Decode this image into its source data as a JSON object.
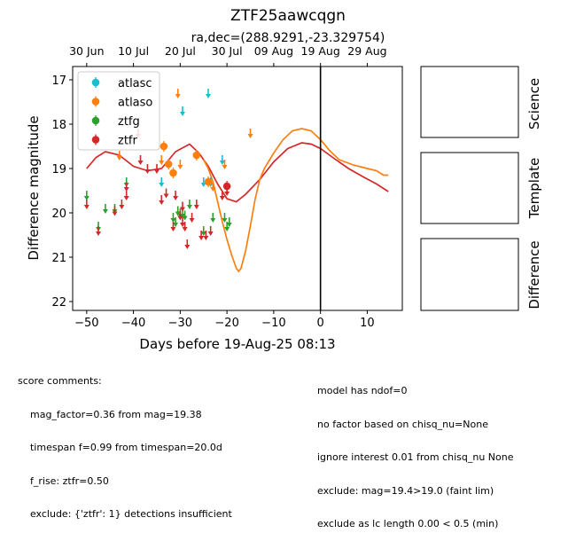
{
  "title": "ZTF25aawcqgn",
  "subtitle": "ra,dec=(288.9291,-23.329754)",
  "panels": {
    "science": "Science",
    "template": "Template",
    "difference": "Difference"
  },
  "comments_left": [
    "score comments:",
    "    mag_factor=0.36 from mag=19.38",
    "    timespan f=0.99 from timespan=20.0d",
    "    f_rise: ztfr=0.50",
    "    exclude: {'ztfr': 1} detections insufficient"
  ],
  "comments_right": [
    "model has ndof=0",
    "no factor based on chisq_nu=None",
    "ignore interest 0.01 from chisq_nu None",
    "exclude: mag=19.4>19.0 (faint lim)",
    "exclude as lc length 0.00 < 0.5 (min)"
  ],
  "chart_data": {
    "type": "scatter",
    "xlabel": "Days before 19-Aug-25 08:13",
    "ylabel": "Difference magnitude",
    "xlim": [
      -53,
      17.5
    ],
    "ylim": [
      22.2,
      16.7
    ],
    "y_inverted": true,
    "xticks": [
      -50,
      -40,
      -30,
      -20,
      -10,
      0,
      10
    ],
    "yticks": [
      17,
      18,
      19,
      20,
      21,
      22
    ],
    "top_axis_ticks": [
      {
        "x": -50,
        "label": "30 Jun"
      },
      {
        "x": -40,
        "label": "10 Jul"
      },
      {
        "x": -30,
        "label": "20 Jul"
      },
      {
        "x": -20,
        "label": "30 Jul"
      },
      {
        "x": -10,
        "label": "09 Aug"
      },
      {
        "x": 0,
        "label": "19 Aug"
      },
      {
        "x": 10,
        "label": "29 Aug"
      }
    ],
    "vline_x": 0,
    "legend_position": "upper-left",
    "series": [
      {
        "name": "atlasc",
        "color": "#17becf",
        "limits": [
          [
            -34,
            19.3
          ],
          [
            -29.5,
            17.7
          ],
          [
            -24,
            17.3
          ],
          [
            -23.5,
            19.3
          ],
          [
            -21,
            18.8
          ],
          [
            -25,
            19.3
          ]
        ],
        "detections": []
      },
      {
        "name": "atlaso",
        "color": "#ff7f0e",
        "limits": [
          [
            -43,
            18.7
          ],
          [
            -34,
            18.8
          ],
          [
            -30.5,
            17.3
          ],
          [
            -30,
            18.9
          ],
          [
            -23,
            19.4
          ],
          [
            -20.5,
            18.9
          ],
          [
            -15,
            18.2
          ]
        ],
        "detections": [
          [
            -33.5,
            18.5
          ],
          [
            -32.5,
            18.9
          ],
          [
            -31.5,
            19.1
          ],
          [
            -26.5,
            18.7
          ],
          [
            -24,
            19.3
          ]
        ]
      },
      {
        "name": "ztfg",
        "color": "#2ca02c",
        "limits": [
          [
            -50,
            19.6
          ],
          [
            -47.5,
            20.3
          ],
          [
            -46,
            19.9
          ],
          [
            -44,
            19.9
          ],
          [
            -41.5,
            19.3
          ],
          [
            -31.5,
            20.1
          ],
          [
            -31,
            20.2
          ],
          [
            -30.5,
            19.95
          ],
          [
            -30,
            20.0
          ],
          [
            -29.5,
            20.0
          ],
          [
            -29,
            20.05
          ],
          [
            -28,
            19.8
          ],
          [
            -25,
            20.4
          ],
          [
            -23,
            20.1
          ],
          [
            -20.5,
            20.1
          ],
          [
            -20,
            20.3
          ],
          [
            -19.5,
            20.2
          ]
        ],
        "detections": []
      },
      {
        "name": "ztfr",
        "color": "#d62728",
        "limits": [
          [
            -50,
            19.8
          ],
          [
            -47.5,
            20.4
          ],
          [
            -44,
            19.95
          ],
          [
            -42.5,
            19.8
          ],
          [
            -41.5,
            19.4
          ],
          [
            -41.5,
            19.6
          ],
          [
            -39,
            18.2
          ],
          [
            -38.5,
            18.8
          ],
          [
            -37,
            19.0
          ],
          [
            -35,
            19.0
          ],
          [
            -34,
            19.7
          ],
          [
            -33,
            19.55
          ],
          [
            -31.5,
            20.3
          ],
          [
            -31,
            19.6
          ],
          [
            -30,
            20.05
          ],
          [
            -29.5,
            19.85
          ],
          [
            -29.5,
            20.2
          ],
          [
            -29,
            20.3
          ],
          [
            -28.5,
            20.7
          ],
          [
            -27.5,
            20.1
          ],
          [
            -26.5,
            19.8
          ],
          [
            -25.5,
            20.5
          ],
          [
            -24.5,
            20.5
          ],
          [
            -23.5,
            20.4
          ],
          [
            -21,
            19.6
          ],
          [
            -20,
            19.5
          ]
        ],
        "detections": [
          [
            -20,
            19.4
          ]
        ]
      }
    ],
    "model_curves": [
      {
        "band": "ztfr",
        "color": "#d62728",
        "points": [
          [
            -50,
            19.0
          ],
          [
            -48,
            18.75
          ],
          [
            -46,
            18.62
          ],
          [
            -43,
            18.7
          ],
          [
            -40,
            18.95
          ],
          [
            -37,
            19.05
          ],
          [
            -34,
            19.0
          ],
          [
            -31,
            18.62
          ],
          [
            -28,
            18.45
          ],
          [
            -26,
            18.65
          ],
          [
            -24,
            18.95
          ],
          [
            -22,
            19.35
          ],
          [
            -20,
            19.68
          ],
          [
            -18,
            19.75
          ],
          [
            -16,
            19.58
          ],
          [
            -13,
            19.25
          ],
          [
            -10,
            18.85
          ],
          [
            -7,
            18.55
          ],
          [
            -4,
            18.42
          ],
          [
            -2,
            18.45
          ],
          [
            0,
            18.55
          ],
          [
            3,
            18.78
          ],
          [
            6,
            19.0
          ],
          [
            9,
            19.18
          ],
          [
            12,
            19.35
          ],
          [
            14.5,
            19.52
          ]
        ]
      },
      {
        "band": "atlaso",
        "color": "#ff7f0e",
        "points": [
          [
            -25,
            18.8
          ],
          [
            -24,
            19.0
          ],
          [
            -23,
            19.3
          ],
          [
            -22,
            19.75
          ],
          [
            -21,
            20.2
          ],
          [
            -20,
            20.6
          ],
          [
            -19,
            20.95
          ],
          [
            -18,
            21.25
          ],
          [
            -17.5,
            21.32
          ],
          [
            -17,
            21.25
          ],
          [
            -16,
            20.85
          ],
          [
            -15,
            20.3
          ],
          [
            -14,
            19.7
          ],
          [
            -13,
            19.25
          ],
          [
            -12,
            19.0
          ],
          [
            -10,
            18.65
          ],
          [
            -8,
            18.35
          ],
          [
            -6,
            18.15
          ],
          [
            -4,
            18.1
          ],
          [
            -2,
            18.15
          ],
          [
            0,
            18.35
          ],
          [
            2,
            18.6
          ],
          [
            4,
            18.8
          ],
          [
            7,
            18.92
          ],
          [
            10,
            19.0
          ],
          [
            12,
            19.05
          ],
          [
            13.5,
            19.15
          ],
          [
            14.5,
            19.15
          ]
        ]
      }
    ]
  }
}
